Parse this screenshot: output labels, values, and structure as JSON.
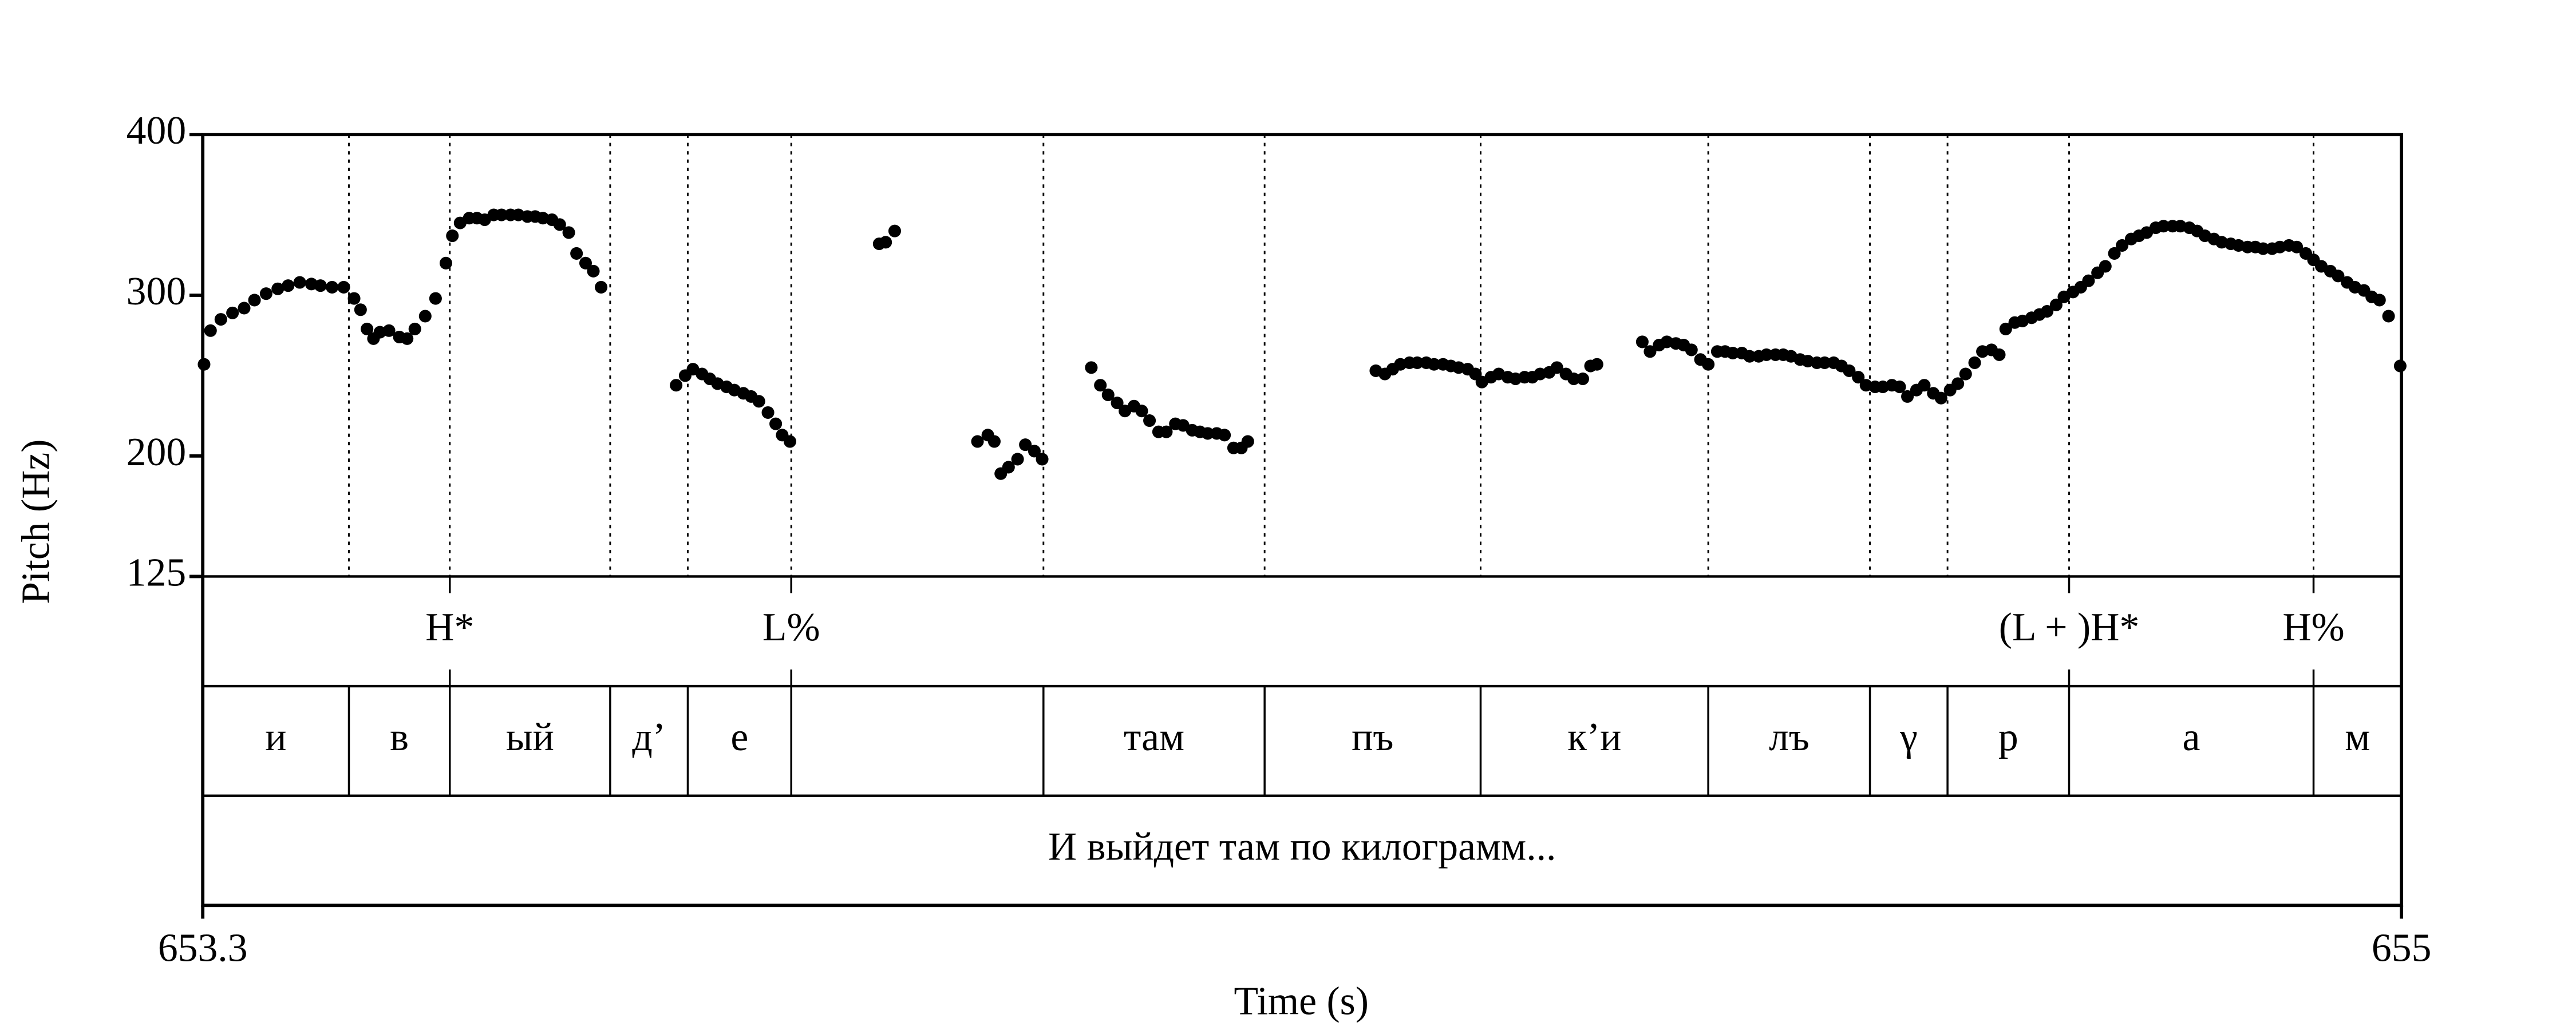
{
  "chart_data": {
    "type": "scatter",
    "xlabel": "Time (s)",
    "ylabel": "Pitch (Hz)",
    "color": "#000000",
    "xlim": [
      653.3,
      655
    ],
    "ylim": [
      125,
      400
    ],
    "xticks": [
      653.3,
      655
    ],
    "yticks": [
      125,
      200,
      300,
      400
    ],
    "x": [
      653.301,
      653.306,
      653.314,
      653.323,
      653.332,
      653.34,
      653.349,
      653.358,
      653.366,
      653.375,
      653.384,
      653.391,
      653.4,
      653.409,
      653.417,
      653.422,
      653.427,
      653.432,
      653.437,
      653.444,
      653.452,
      653.458,
      653.464,
      653.472,
      653.48,
      653.488,
      653.493,
      653.499,
      653.506,
      653.512,
      653.518,
      653.525,
      653.531,
      653.538,
      653.544,
      653.551,
      653.557,
      653.563,
      653.57,
      653.576,
      653.583,
      653.589,
      653.596,
      653.602,
      653.608,
      653.666,
      653.673,
      653.679,
      653.686,
      653.692,
      653.698,
      653.705,
      653.711,
      653.718,
      653.724,
      653.73,
      653.737,
      653.743,
      653.748,
      653.754,
      653.823,
      653.828,
      653.835,
      653.899,
      653.907,
      653.912,
      653.917,
      653.923,
      653.93,
      653.936,
      653.943,
      653.949,
      653.987,
      653.994,
      654.0,
      654.007,
      654.013,
      654.02,
      654.026,
      654.032,
      654.039,
      654.045,
      654.052,
      654.058,
      654.065,
      654.071,
      654.077,
      654.084,
      654.09,
      654.097,
      654.103,
      654.108,
      654.207,
      654.214,
      654.22,
      654.226,
      654.233,
      654.239,
      654.246,
      654.252,
      654.259,
      654.265,
      654.271,
      654.278,
      654.284,
      654.289,
      654.296,
      654.302,
      654.309,
      654.315,
      654.322,
      654.328,
      654.334,
      654.341,
      654.347,
      654.354,
      654.36,
      654.367,
      654.373,
      654.378,
      654.413,
      654.419,
      654.426,
      654.432,
      654.439,
      654.445,
      654.451,
      654.458,
      654.464,
      654.471,
      654.477,
      654.483,
      654.49,
      654.496,
      654.503,
      654.509,
      654.516,
      654.522,
      654.528,
      654.535,
      654.541,
      654.548,
      654.554,
      654.561,
      654.567,
      654.573,
      654.58,
      654.586,
      654.593,
      654.599,
      654.606,
      654.612,
      654.618,
      654.625,
      654.631,
      654.638,
      654.644,
      654.651,
      654.657,
      654.663,
      654.67,
      654.676,
      654.683,
      654.689,
      654.694,
      654.701,
      654.707,
      654.714,
      654.72,
      654.726,
      654.733,
      654.739,
      654.746,
      654.752,
      654.758,
      654.765,
      654.771,
      654.778,
      654.784,
      654.791,
      654.797,
      654.803,
      654.81,
      654.816,
      654.823,
      654.829,
      654.836,
      654.842,
      654.848,
      654.855,
      654.861,
      654.868,
      654.874,
      654.881,
      654.887,
      654.893,
      654.9,
      654.906,
      654.913,
      654.919,
      654.926,
      654.932,
      654.938,
      654.945,
      654.951,
      654.958,
      654.964,
      654.971,
      654.977,
      654.983,
      654.99,
      654.999
    ],
    "values": [
      257,
      278,
      285,
      289,
      292,
      297,
      301,
      304,
      306,
      308,
      307,
      306,
      305,
      305,
      298,
      291,
      279,
      273,
      277,
      278,
      274,
      273,
      279,
      287,
      298,
      320,
      337,
      345,
      348,
      348,
      347,
      350,
      350,
      350,
      350,
      349,
      349,
      348,
      347,
      344,
      339,
      326,
      320,
      315,
      305,
      244,
      250,
      254,
      251,
      248,
      245,
      243,
      241,
      239,
      237,
      234,
      227,
      220,
      213,
      209,
      332,
      333,
      340,
      209,
      213,
      209,
      189,
      193,
      198,
      207,
      203,
      198,
      255,
      244,
      238,
      233,
      228,
      231,
      228,
      222,
      215,
      215,
      220,
      219,
      216,
      215,
      214,
      214,
      213,
      205,
      205,
      209,
      253,
      251,
      254,
      257,
      258,
      258,
      258,
      257,
      257,
      256,
      255,
      254,
      251,
      246,
      249,
      251,
      249,
      248,
      249,
      249,
      251,
      252,
      255,
      251,
      248,
      248,
      256,
      257,
      271,
      265,
      269,
      271,
      270,
      269,
      266,
      260,
      257,
      265,
      265,
      264,
      264,
      262,
      262,
      263,
      263,
      263,
      262,
      260,
      259,
      258,
      258,
      258,
      256,
      253,
      249,
      244,
      243,
      243,
      244,
      243,
      237,
      241,
      244,
      239,
      236,
      241,
      245,
      251,
      258,
      265,
      266,
      263,
      279,
      283,
      284,
      286,
      288,
      290,
      294,
      299,
      302,
      305,
      309,
      314,
      318,
      326,
      331,
      335,
      337,
      339,
      342,
      343,
      343,
      343,
      342,
      340,
      337,
      335,
      333,
      332,
      331,
      330,
      330,
      329,
      329,
      330,
      331,
      330,
      326,
      322,
      318,
      315,
      312,
      308,
      305,
      303,
      299,
      297,
      287,
      256
    ],
    "tiers": [
      {
        "type": "point",
        "points": [
          {
            "time": 653.491,
            "label": "H*"
          },
          {
            "time": 653.755,
            "label": "L%"
          },
          {
            "time": 654.743,
            "label": "(L + )H*"
          },
          {
            "time": 654.932,
            "label": "H%"
          }
        ]
      },
      {
        "type": "interval",
        "boundaries": [
          653.413,
          653.491,
          653.615,
          653.675,
          653.755,
          653.95,
          654.121,
          654.288,
          654.464,
          654.589,
          654.649,
          654.743,
          654.932
        ],
        "labels": [
          "и",
          "в",
          "ый",
          "д’",
          "е",
          null,
          "там",
          "пъ",
          "к’и",
          "лъ",
          "γ",
          "р",
          "а",
          "м"
        ]
      },
      {
        "type": "interval",
        "boundaries": [],
        "labels": [
          "И выйдет там по килограмм..."
        ]
      }
    ]
  }
}
